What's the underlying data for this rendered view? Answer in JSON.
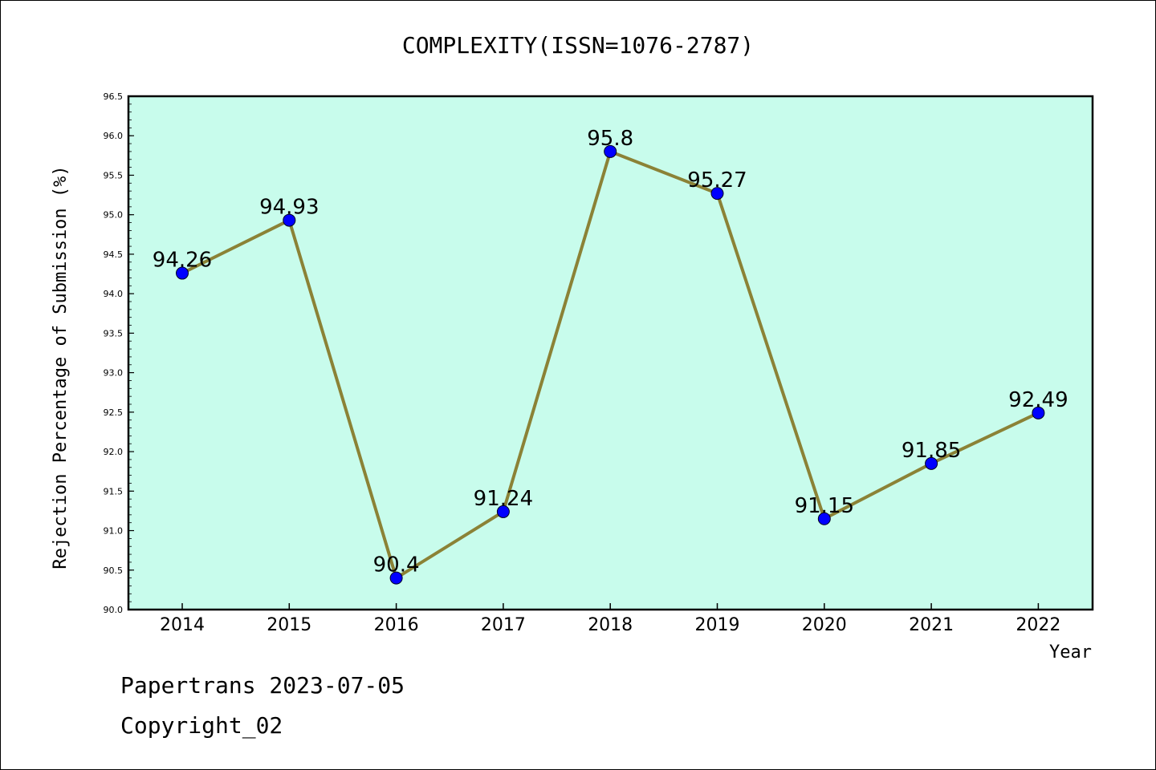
{
  "chart_data": {
    "type": "line",
    "title": "COMPLEXITY(ISSN=1076-2787)",
    "xlabel": "Year",
    "ylabel": "Rejection Percentage of Submission (%)",
    "categories": [
      "2014",
      "2015",
      "2016",
      "2017",
      "2018",
      "2019",
      "2020",
      "2021",
      "2022"
    ],
    "values": [
      94.26,
      94.93,
      90.4,
      91.24,
      95.8,
      95.27,
      91.15,
      91.85,
      92.49
    ],
    "data_labels": [
      "94.26",
      "94.93",
      "90.4",
      "91.24",
      "95.8",
      "95.27",
      "91.15",
      "91.85",
      "92.49"
    ],
    "ylim": [
      90.0,
      96.5
    ],
    "yticks": [
      "90.0",
      "90.5",
      "91.0",
      "91.5",
      "92.0",
      "92.5",
      "93.0",
      "93.5",
      "94.0",
      "94.5",
      "95.0",
      "95.5",
      "96.0",
      "96.5"
    ],
    "grid": false,
    "colors": {
      "plot_background": "#c8fcec",
      "line": "#8b8236",
      "marker": "#0000ff"
    }
  },
  "footer": {
    "line1": "Papertrans 2023-07-05",
    "line2": "Copyright_02"
  }
}
